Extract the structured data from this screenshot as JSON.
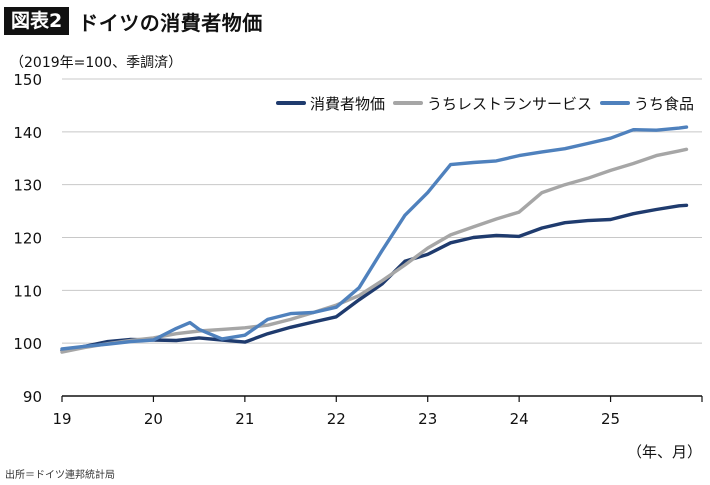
{
  "header": {
    "figure_label": "図表2",
    "title": "ドイツの消費者物価"
  },
  "unit_note": "（2019年=100、季調済）",
  "source_note": "出所＝ドイツ連邦統計局",
  "colors": {
    "cpi": "#1f3b6e",
    "restaurant_services": "#a6a6a6",
    "food": "#4f81bd",
    "axis": "#111111",
    "grid": "#c8c8c8"
  },
  "chart_data": {
    "type": "line",
    "xlabel": "（年、月）",
    "ylabel": "",
    "xlim": [
      2019.0,
      2026.0
    ],
    "ylim": [
      90,
      150
    ],
    "y_ticks": [
      90,
      100,
      110,
      120,
      130,
      140,
      150
    ],
    "x_ticks": [
      {
        "value": 2019,
        "label": "19"
      },
      {
        "value": 2020,
        "label": "20"
      },
      {
        "value": 2021,
        "label": "21"
      },
      {
        "value": 2022,
        "label": "22"
      },
      {
        "value": 2023,
        "label": "23"
      },
      {
        "value": 2024,
        "label": "24"
      },
      {
        "value": 2025,
        "label": "25"
      }
    ],
    "grid": "horizontal",
    "legend_position": "top-right",
    "series": [
      {
        "name": "消費者物価",
        "color_key": "cpi",
        "points": [
          [
            2019.0,
            98.6
          ],
          [
            2019.25,
            99.4
          ],
          [
            2019.5,
            100.3
          ],
          [
            2019.75,
            100.7
          ],
          [
            2020.0,
            100.6
          ],
          [
            2020.25,
            100.5
          ],
          [
            2020.5,
            101.0
          ],
          [
            2020.75,
            100.6
          ],
          [
            2021.0,
            100.2
          ],
          [
            2021.25,
            101.8
          ],
          [
            2021.5,
            103.0
          ],
          [
            2021.75,
            104.0
          ],
          [
            2022.0,
            105.0
          ],
          [
            2022.25,
            108.2
          ],
          [
            2022.5,
            111.2
          ],
          [
            2022.75,
            115.5
          ],
          [
            2023.0,
            116.8
          ],
          [
            2023.25,
            119.0
          ],
          [
            2023.5,
            120.0
          ],
          [
            2023.75,
            120.4
          ],
          [
            2024.0,
            120.2
          ],
          [
            2024.25,
            121.8
          ],
          [
            2024.5,
            122.8
          ],
          [
            2024.75,
            123.2
          ],
          [
            2025.0,
            123.4
          ],
          [
            2025.25,
            124.5
          ],
          [
            2025.5,
            125.3
          ],
          [
            2025.75,
            126.0
          ],
          [
            2025.83,
            126.1
          ]
        ]
      },
      {
        "name": "うちレストランサービス",
        "color_key": "restaurant_services",
        "points": [
          [
            2019.0,
            98.3
          ],
          [
            2019.25,
            99.2
          ],
          [
            2019.5,
            99.9
          ],
          [
            2019.75,
            100.5
          ],
          [
            2020.0,
            101.0
          ],
          [
            2020.25,
            101.8
          ],
          [
            2020.5,
            102.3
          ],
          [
            2020.75,
            102.6
          ],
          [
            2021.0,
            102.9
          ],
          [
            2021.25,
            103.4
          ],
          [
            2021.5,
            104.5
          ],
          [
            2021.75,
            105.8
          ],
          [
            2022.0,
            107.2
          ],
          [
            2022.25,
            109.0
          ],
          [
            2022.5,
            111.8
          ],
          [
            2022.75,
            114.8
          ],
          [
            2023.0,
            118.0
          ],
          [
            2023.25,
            120.5
          ],
          [
            2023.5,
            122.0
          ],
          [
            2023.75,
            123.5
          ],
          [
            2024.0,
            124.8
          ],
          [
            2024.25,
            128.5
          ],
          [
            2024.5,
            130.0
          ],
          [
            2024.75,
            131.2
          ],
          [
            2025.0,
            132.7
          ],
          [
            2025.25,
            134.0
          ],
          [
            2025.5,
            135.5
          ],
          [
            2025.75,
            136.4
          ],
          [
            2025.83,
            136.7
          ]
        ]
      },
      {
        "name": "うち食品",
        "color_key": "food",
        "points": [
          [
            2019.0,
            98.9
          ],
          [
            2019.25,
            99.4
          ],
          [
            2019.5,
            99.8
          ],
          [
            2019.75,
            100.3
          ],
          [
            2020.0,
            100.6
          ],
          [
            2020.25,
            102.8
          ],
          [
            2020.4,
            103.9
          ],
          [
            2020.5,
            102.6
          ],
          [
            2020.75,
            100.8
          ],
          [
            2021.0,
            101.5
          ],
          [
            2021.25,
            104.5
          ],
          [
            2021.5,
            105.6
          ],
          [
            2021.75,
            105.8
          ],
          [
            2022.0,
            106.8
          ],
          [
            2022.25,
            110.5
          ],
          [
            2022.5,
            117.5
          ],
          [
            2022.75,
            124.2
          ],
          [
            2023.0,
            128.5
          ],
          [
            2023.25,
            133.8
          ],
          [
            2023.5,
            134.2
          ],
          [
            2023.75,
            134.5
          ],
          [
            2024.0,
            135.5
          ],
          [
            2024.25,
            136.2
          ],
          [
            2024.5,
            136.8
          ],
          [
            2024.75,
            137.8
          ],
          [
            2025.0,
            138.8
          ],
          [
            2025.25,
            140.4
          ],
          [
            2025.5,
            140.3
          ],
          [
            2025.75,
            140.7
          ],
          [
            2025.83,
            140.9
          ]
        ]
      }
    ]
  }
}
